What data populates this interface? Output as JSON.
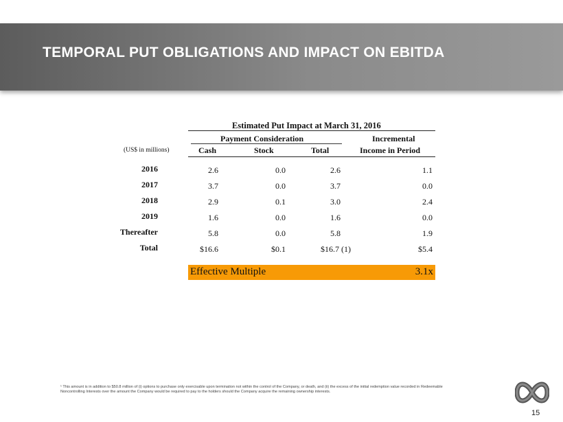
{
  "slide": {
    "title": "TEMPORAL PUT OBLIGATIONS AND IMPACT ON EBITDA",
    "page_number": "15"
  },
  "table": {
    "title": "Estimated Put Impact at March 31, 2016",
    "group_header": "Payment Consideration",
    "incremental_header_line1": "Incremental",
    "units_label": "(US$ in millions)",
    "col_cash": "Cash",
    "col_stock": "Stock",
    "col_total": "Total",
    "col_income": "Income in Period",
    "rows": [
      {
        "label": "2016",
        "cash": "2.6",
        "stock": "0.0",
        "total": "2.6",
        "income": "1.1"
      },
      {
        "label": "2017",
        "cash": "3.7",
        "stock": "0.0",
        "total": "3.7",
        "income": "0.0"
      },
      {
        "label": "2018",
        "cash": "2.9",
        "stock": "0.1",
        "total": "3.0",
        "income": "2.4"
      },
      {
        "label": "2019",
        "cash": "1.6",
        "stock": "0.0",
        "total": "1.6",
        "income": "0.0"
      },
      {
        "label": "Thereafter",
        "cash": "5.8",
        "stock": "0.0",
        "total": "5.8",
        "income": "1.9"
      },
      {
        "label": "Total",
        "cash": "$16.6",
        "stock": "$0.1",
        "total": "$16.7 (1)",
        "income": "$5.4"
      }
    ]
  },
  "effective_multiple": {
    "label": "Effective Multiple",
    "value": "3.1x",
    "color": "#f79a06"
  },
  "footnote": "¹ This amount is in addition to $50.8 million of (i) options to purchase only exercisable upon termination not within the control of the Company, or death, and (ii) the excess of the initial redemption value recorded in Redeemable Noncontrolling Interests over the amount the Company would be required to pay to the holders should the Company acquire the remaining ownership interests."
}
